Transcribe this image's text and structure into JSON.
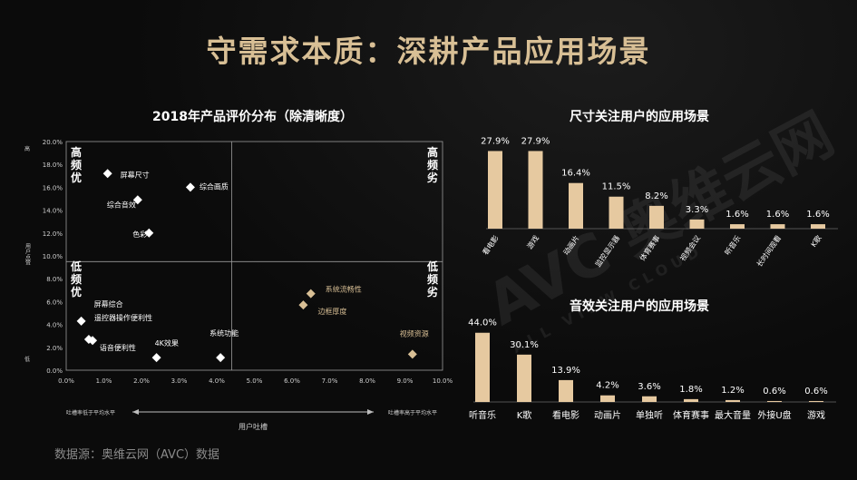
{
  "page_title": "守需求本质：深耕产品应用场景",
  "watermark": {
    "main": "AVC 奥维云网",
    "sub": "ALL VIEW CLOUD"
  },
  "source": "数据源：奥维云网（AVC）数据",
  "colors": {
    "accent": "#d8bf95",
    "bar": "#e6c9a0",
    "point_white": "#ffffff",
    "point_tan": "#d8bf95"
  },
  "chart_data": [
    {
      "type": "scatter",
      "title": "2018年产品评价分布（除清晰度）",
      "xlabel": "用户吐槽",
      "ylabel": "用户点赞",
      "x_low_label": "吐槽率低于平均水平",
      "x_high_label": "吐槽率高于平均水平",
      "y_high_label": "高",
      "y_low_label": "低",
      "xlim": [
        0,
        10
      ],
      "ylim": [
        0,
        20
      ],
      "x_ticks": [
        "0.0%",
        "1.0%",
        "2.0%",
        "3.0%",
        "4.0%",
        "5.0%",
        "6.0%",
        "7.0%",
        "8.0%",
        "9.0%",
        "10.0%"
      ],
      "y_ticks": [
        "0.0%",
        "2.0%",
        "4.0%",
        "6.0%",
        "8.0%",
        "10.0%",
        "12.0%",
        "14.0%",
        "16.0%",
        "18.0%",
        "20.0%"
      ],
      "divider": {
        "x": 4.4,
        "y": 9.5
      },
      "quadrants": {
        "tl": [
          "高",
          "频",
          "优"
        ],
        "tr": [
          "高",
          "频",
          "劣"
        ],
        "bl": [
          "低",
          "频",
          "优"
        ],
        "br": [
          "低",
          "频",
          "劣"
        ]
      },
      "points": [
        {
          "label": "屏幕尺寸",
          "x": 1.1,
          "y": 17.2,
          "group": "white"
        },
        {
          "label": "综合画质",
          "x": 3.3,
          "y": 16.0,
          "group": "white"
        },
        {
          "label": "综合音效",
          "x": 1.9,
          "y": 14.9,
          "group": "white"
        },
        {
          "label": "色彩",
          "x": 2.2,
          "y": 12.0,
          "group": "white"
        },
        {
          "label": "屏幕综合",
          "x": 0.4,
          "y": 4.3,
          "group": "white"
        },
        {
          "label": "遥控器操作便利性",
          "x": 0.7,
          "y": 2.6,
          "group": "white"
        },
        {
          "label": "语音便利性",
          "x": 0.6,
          "y": 2.7,
          "group": "white"
        },
        {
          "label": "4K效果",
          "x": 2.4,
          "y": 1.1,
          "group": "white"
        },
        {
          "label": "系统功能",
          "x": 4.1,
          "y": 1.1,
          "group": "white"
        },
        {
          "label": "系统流畅性",
          "x": 6.5,
          "y": 6.7,
          "group": "tan"
        },
        {
          "label": "边框厚度",
          "x": 6.3,
          "y": 5.7,
          "group": "tan"
        },
        {
          "label": "视频资源",
          "x": 9.2,
          "y": 1.4,
          "group": "tan"
        }
      ]
    },
    {
      "type": "bar",
      "title": "尺寸关注用户的应用场景",
      "categories": [
        "看电影",
        "游戏",
        "动画片",
        "监控显示器",
        "体育赛事",
        "视频会议",
        "听音乐",
        "长时间观看",
        "K歌"
      ],
      "values": [
        27.9,
        27.9,
        16.4,
        11.5,
        8.2,
        3.3,
        1.6,
        1.6,
        1.6
      ],
      "value_labels": [
        "27.9%",
        "27.9%",
        "16.4%",
        "11.5%",
        "8.2%",
        "3.3%",
        "1.6%",
        "1.6%",
        "1.6%"
      ],
      "ylim": [
        0,
        30
      ]
    },
    {
      "type": "bar",
      "title": "音效关注用户的应用场景",
      "categories": [
        "听音乐",
        "K歌",
        "看电影",
        "动画片",
        "单独听",
        "体育赛事",
        "最大音量",
        "外接U盘",
        "游戏"
      ],
      "values": [
        44.0,
        30.1,
        13.9,
        4.2,
        3.6,
        1.8,
        1.2,
        0.6,
        0.6
      ],
      "value_labels": [
        "44.0%",
        "30.1%",
        "13.9%",
        "4.2%",
        "3.6%",
        "1.8%",
        "1.2%",
        "0.6%",
        "0.6%"
      ],
      "ylim": [
        0,
        45
      ]
    }
  ]
}
